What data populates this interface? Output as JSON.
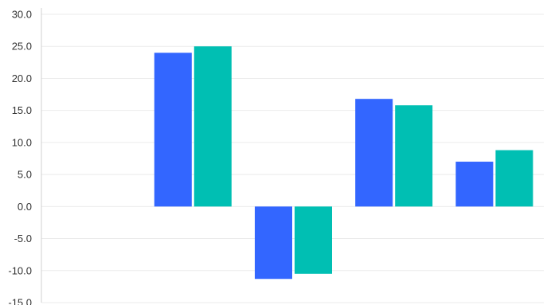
{
  "chart_data": {
    "type": "bar",
    "categories": [
      "",
      "",
      "",
      "",
      ""
    ],
    "series": [
      {
        "values": [
          0,
          24.0,
          -11.3,
          16.8,
          7.0
        ]
      },
      {
        "values": [
          0,
          25.0,
          -10.5,
          15.8,
          8.8
        ]
      }
    ],
    "ylim": [
      -15,
      30
    ],
    "yticks": [
      "30.0",
      "25.0",
      "20.0",
      "15.0",
      "10.0",
      "5.0",
      "0.0",
      "-5.0",
      "-10.0",
      "-15.0"
    ],
    "grid": true,
    "legend": "none",
    "colors": [
      "#3366ff",
      "#00bfb3"
    ]
  }
}
